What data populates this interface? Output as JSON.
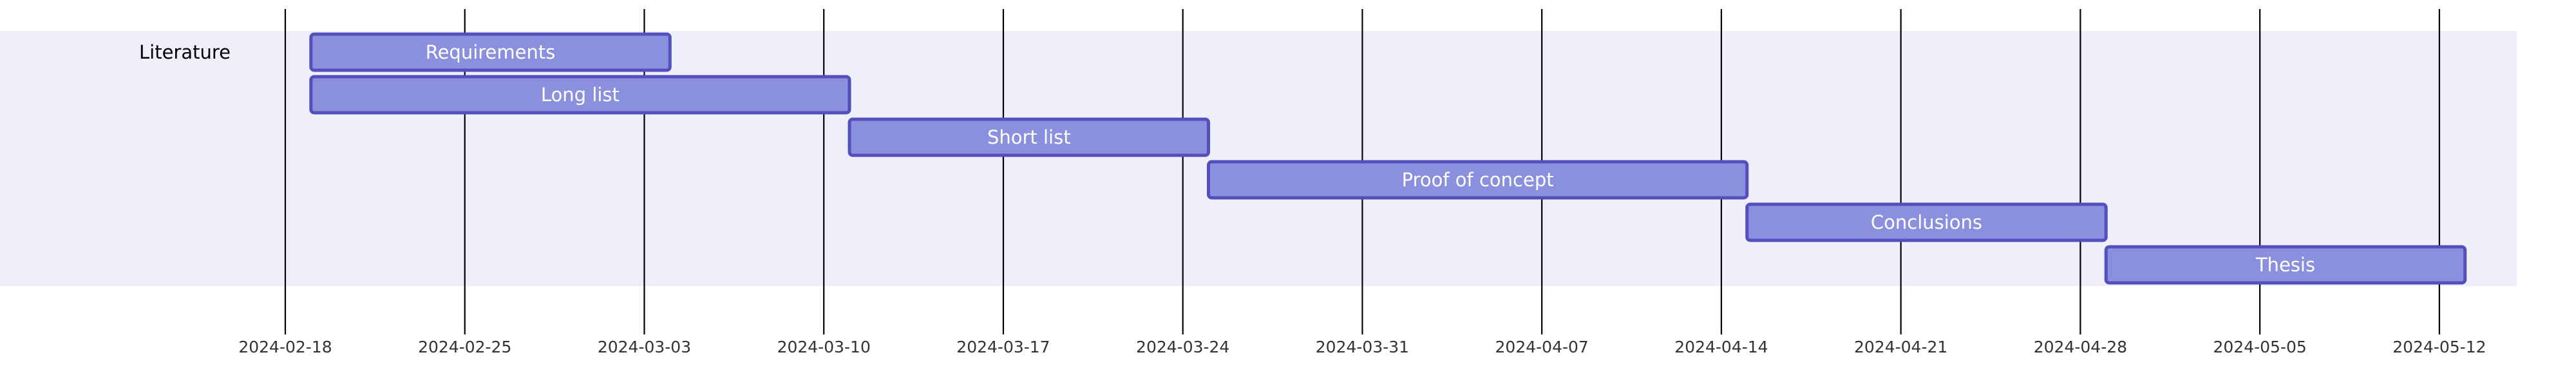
{
  "chart_data": {
    "type": "gantt",
    "title": "",
    "grid": true,
    "x_axis": {
      "type": "date",
      "range": [
        "2024-02-18",
        "2024-05-16"
      ],
      "tick_labels": [
        "2024-02-18",
        "2024-02-25",
        "2024-03-03",
        "2024-03-10",
        "2024-03-17",
        "2024-03-24",
        "2024-03-31",
        "2024-04-07",
        "2024-04-14",
        "2024-04-21",
        "2024-04-28",
        "2024-05-05",
        "2024-05-12"
      ]
    },
    "sections": [
      {
        "name": "Literature",
        "tasks": [
          {
            "name": "Requirements",
            "start": "2024-02-19",
            "end": "2024-03-04"
          },
          {
            "name": "Long list",
            "start": "2024-02-19",
            "end": "2024-03-11"
          },
          {
            "name": "Short list",
            "start": "2024-03-11",
            "end": "2024-03-25"
          },
          {
            "name": "Proof of concept",
            "start": "2024-03-25",
            "end": "2024-04-15"
          },
          {
            "name": "Conclusions",
            "start": "2024-04-15",
            "end": "2024-04-29"
          },
          {
            "name": "Thesis",
            "start": "2024-04-29",
            "end": "2024-05-13"
          }
        ]
      }
    ]
  },
  "colors": {
    "section_background": "#efeffb",
    "task_fill": "#8a90dd",
    "task_border": "#534fbc",
    "task_text": "#ffffff",
    "grid_line": "#000000",
    "tick_text": "#333333"
  }
}
